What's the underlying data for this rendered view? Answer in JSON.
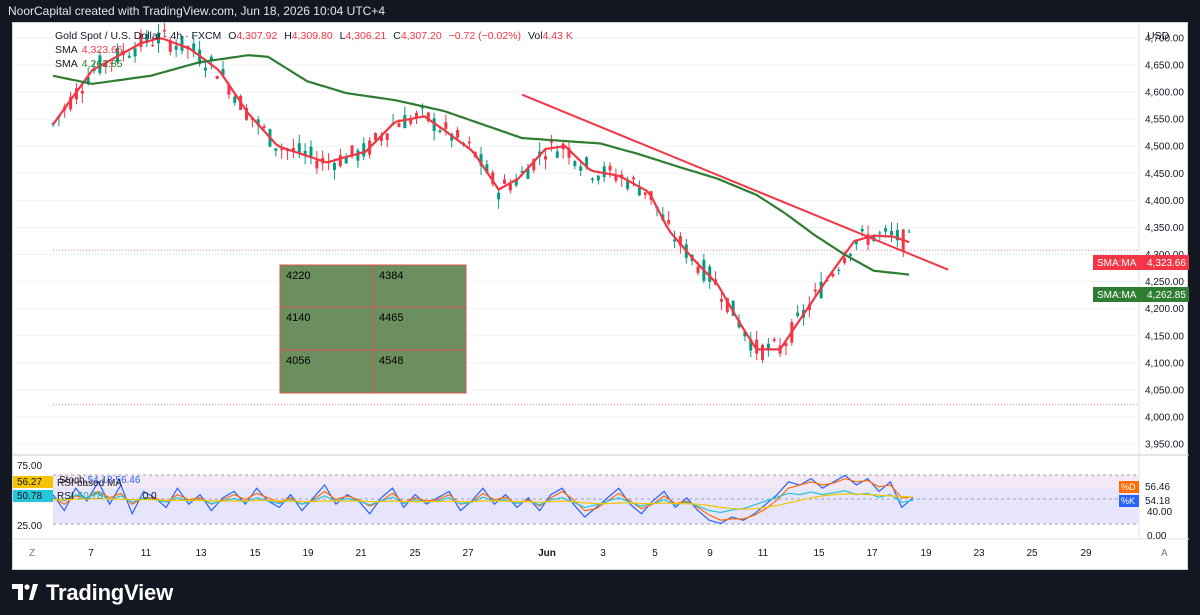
{
  "header": {
    "attribution": "NoorCapital created with TradingView.com, Jun 18, 2026 10:04 UTC+4"
  },
  "legend": {
    "symbol": "Gold Spot / U.S. Dollar · 4h · FXCM",
    "o_label": "O",
    "o_value": "4,307.92",
    "h_label": "H",
    "h_value": "4,309.80",
    "l_label": "L",
    "l_value": "4,306.21",
    "c_label": "C",
    "c_value": "4,307.20",
    "change": "−0.72 (−0.02%)",
    "vol_label": "Vol",
    "vol_value": "4.43 K",
    "sma1_label": "SMA",
    "sma1_value": "4,323.66",
    "sma2_label": "SMA",
    "sma2_value": "4,262.85"
  },
  "osc_legend": {
    "stoch": "Stoch",
    "stoch_vals": "54.18 56.46",
    "rsi_ma": "RSI-based MA",
    "rsi": "RSI",
    "rsi_val": "50.78",
    "extra": "0 0"
  },
  "currency": "USD",
  "levels_table": [
    [
      "4220",
      "4384"
    ],
    [
      "4140",
      "4465"
    ],
    [
      "4056",
      "4548"
    ]
  ],
  "price_tags": [
    {
      "label": "SMA:MA",
      "value": "4,323.66",
      "color": "#f23645"
    },
    {
      "label": "SMA:MA",
      "value": "4,262.85",
      "color": "#2e7d32"
    }
  ],
  "osc_tags": [
    {
      "label": "%D",
      "value": "56.46",
      "color": "#ff6d00"
    },
    {
      "label": "%K",
      "value": "54.18",
      "color": "#2962ff"
    }
  ],
  "osc_left_tags": [
    {
      "value": "56.27",
      "color": "#f5c400"
    },
    {
      "value": "50.78",
      "color": "#26c6da"
    }
  ],
  "brand": "TradingView",
  "colors": {
    "up": "#089981",
    "down": "#f23645",
    "sma_fast": "#f23645",
    "sma_slow": "#2e7d32",
    "trendline": "#f23645",
    "table_fill": "#6b8f5e"
  },
  "chart_data": [
    {
      "type": "candlestick",
      "title": "Gold Spot / U.S. Dollar · 4h · FXCM",
      "ylabel": "USD",
      "ylim": [
        3930,
        4720
      ],
      "y_ticks": [
        "4,700.00",
        "4,650.00",
        "4,600.00",
        "4,550.00",
        "4,500.00",
        "4,450.00",
        "4,400.00",
        "4,350.00",
        "4,300.00",
        "4,250.00",
        "4,200.00",
        "4,150.00",
        "4,100.00",
        "4,050.00",
        "4,000.00",
        "3,950.00"
      ],
      "x_ticks": [
        "7",
        "11",
        "13",
        "15",
        "19",
        "21",
        "25",
        "27",
        "Jun",
        "3",
        "5",
        "9",
        "11",
        "15",
        "17",
        "19",
        "23",
        "25",
        "29"
      ],
      "series": [
        {
          "name": "SMA",
          "kind": "line",
          "anchors": [
            [
              0,
              4540
            ],
            [
              20,
              4640
            ],
            [
              45,
              4690
            ],
            [
              55,
              4700
            ],
            [
              70,
              4680
            ],
            [
              85,
              4640
            ],
            [
              100,
              4560
            ],
            [
              115,
              4500
            ],
            [
              140,
              4470
            ],
            [
              160,
              4490
            ],
            [
              175,
              4545
            ],
            [
              190,
              4555
            ],
            [
              200,
              4530
            ],
            [
              215,
              4490
            ],
            [
              228,
              4420
            ],
            [
              238,
              4440
            ],
            [
              252,
              4495
            ],
            [
              262,
              4500
            ],
            [
              275,
              4455
            ],
            [
              290,
              4445
            ],
            [
              305,
              4415
            ],
            [
              315,
              4345
            ],
            [
              328,
              4290
            ],
            [
              340,
              4245
            ],
            [
              352,
              4170
            ],
            [
              360,
              4125
            ],
            [
              372,
              4125
            ],
            [
              385,
              4195
            ],
            [
              398,
              4265
            ],
            [
              410,
              4325
            ],
            [
              420,
              4335
            ],
            [
              430,
              4333
            ],
            [
              438,
              4323
            ]
          ]
        },
        {
          "name": "SMA",
          "kind": "line",
          "anchors": [
            [
              0,
              4630
            ],
            [
              20,
              4615
            ],
            [
              50,
              4630
            ],
            [
              75,
              4655
            ],
            [
              100,
              4668
            ],
            [
              110,
              4665
            ],
            [
              130,
              4620
            ],
            [
              150,
              4598
            ],
            [
              175,
              4585
            ],
            [
              200,
              4565
            ],
            [
              220,
              4540
            ],
            [
              240,
              4515
            ],
            [
              260,
              4510
            ],
            [
              280,
              4505
            ],
            [
              300,
              4485
            ],
            [
              320,
              4462
            ],
            [
              340,
              4440
            ],
            [
              360,
              4410
            ],
            [
              375,
              4375
            ],
            [
              390,
              4335
            ],
            [
              405,
              4300
            ],
            [
              420,
              4270
            ],
            [
              438,
              4263
            ]
          ]
        }
      ],
      "annotations": [
        {
          "type": "trendline",
          "from": [
            240,
            4595
          ],
          "to": [
            458,
            4272
          ]
        },
        {
          "type": "level",
          "value": 4308
        },
        {
          "type": "level",
          "value": 4023
        }
      ]
    },
    {
      "type": "line",
      "title": "Stoch / RSI",
      "ylim": [
        0,
        100
      ],
      "y_ticks_left": [
        "75.00",
        "25.00"
      ],
      "y_ticks_right": [
        "40.00",
        "0.00"
      ],
      "series": [
        {
          "name": "%K",
          "values": [
            60,
            35,
            70,
            50,
            80,
            45,
            75,
            30,
            65,
            55,
            40,
            70,
            45,
            60,
            35,
            55,
            65,
            45,
            70,
            50,
            40,
            60,
            35,
            55,
            75,
            45,
            60,
            50,
            30,
            55,
            70,
            40,
            60,
            45,
            55,
            65,
            35,
            50,
            70,
            45,
            60,
            40,
            55,
            35,
            60,
            70,
            45,
            25,
            40,
            55,
            70,
            45,
            30,
            50,
            65,
            40,
            55,
            35,
            20,
            15,
            25,
            20,
            30,
            45,
            60,
            80,
            75,
            85,
            70,
            80,
            90,
            75,
            85,
            65,
            80,
            40,
            55
          ]
        },
        {
          "name": "%D",
          "values": [
            55,
            45,
            58,
            55,
            65,
            55,
            62,
            45,
            55,
            55,
            48,
            60,
            52,
            55,
            45,
            52,
            60,
            52,
            62,
            55,
            48,
            55,
            45,
            52,
            65,
            52,
            58,
            52,
            42,
            50,
            62,
            48,
            55,
            50,
            52,
            60,
            45,
            48,
            62,
            52,
            56,
            46,
            52,
            42,
            55,
            65,
            52,
            35,
            38,
            50,
            62,
            50,
            38,
            45,
            58,
            46,
            50,
            40,
            28,
            20,
            22,
            22,
            28,
            38,
            52,
            70,
            75,
            80,
            75,
            78,
            85,
            80,
            82,
            72,
            75,
            55,
            56
          ]
        },
        {
          "name": "RSI",
          "values": [
            55,
            50,
            60,
            55,
            62,
            52,
            58,
            48,
            55,
            52,
            48,
            55,
            50,
            52,
            46,
            50,
            54,
            48,
            55,
            50,
            46,
            52,
            45,
            50,
            58,
            50,
            54,
            50,
            44,
            50,
            56,
            46,
            52,
            48,
            50,
            55,
            46,
            48,
            56,
            50,
            52,
            46,
            50,
            44,
            52,
            55,
            48,
            40,
            44,
            50,
            55,
            48,
            42,
            46,
            52,
            44,
            48,
            42,
            35,
            32,
            36,
            38,
            44,
            50,
            56,
            62,
            60,
            64,
            60,
            63,
            66,
            60,
            62,
            56,
            60,
            48,
            51
          ]
        },
        {
          "name": "RSI-based MA",
          "values": [
            52,
            52,
            53,
            53,
            54,
            53,
            53,
            52,
            52,
            52,
            51,
            51,
            51,
            51,
            50,
            50,
            50,
            50,
            51,
            51,
            50,
            50,
            49,
            49,
            50,
            50,
            50,
            50,
            49,
            49,
            50,
            49,
            49,
            49,
            49,
            50,
            49,
            49,
            50,
            50,
            50,
            49,
            49,
            48,
            49,
            50,
            49,
            47,
            46,
            46,
            47,
            47,
            46,
            46,
            47,
            46,
            46,
            45,
            43,
            40,
            38,
            37,
            38,
            40,
            43,
            47,
            51,
            55,
            58,
            60,
            61,
            61,
            60,
            59,
            58,
            57,
            56
          ]
        }
      ]
    }
  ]
}
